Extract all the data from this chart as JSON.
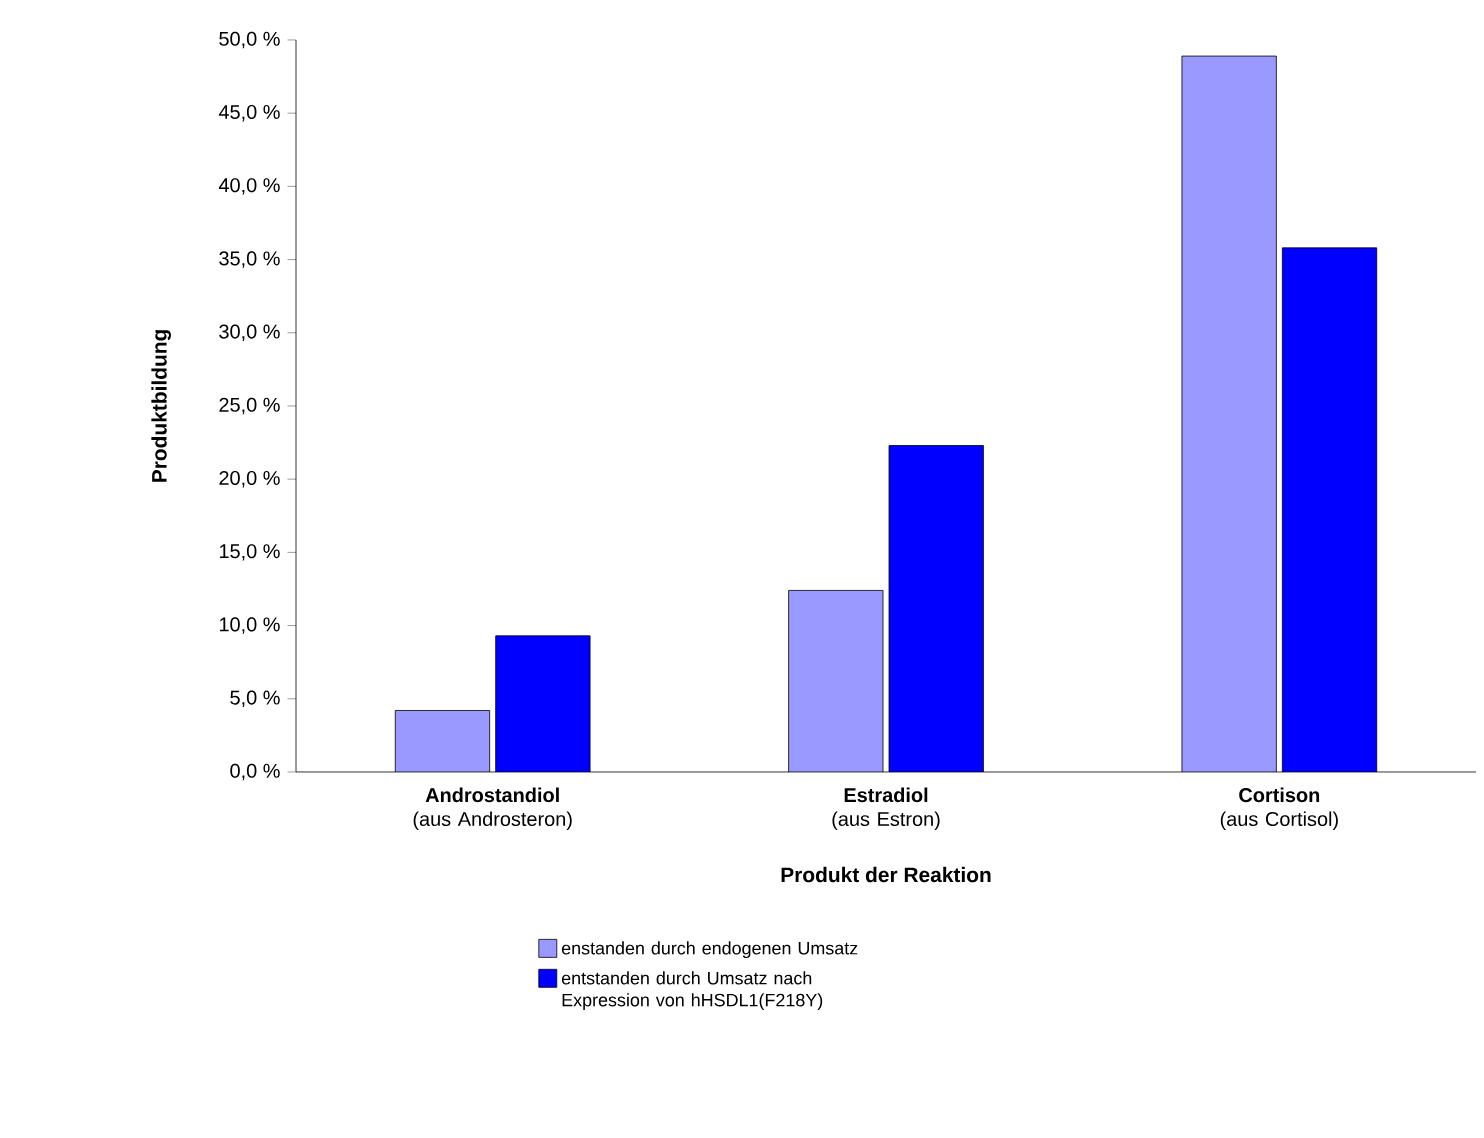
{
  "chart_data": {
    "type": "bar",
    "categories": [
      "**Androstandiol** (aus Androsteron)",
      "**Estradiol** (aus Estron)",
      "**Cortison** (aus Cortisol)"
    ],
    "series": [
      {
        "name": "enstanden durch endogenen Umsatz",
        "color": "#9999ff",
        "values": [
          4.2,
          12.4,
          48.9
        ]
      },
      {
        "name": "entstanden durch Umsatz nach Expression von hHSDL1(F218Y)",
        "color": "#0000ff",
        "values": [
          9.3,
          22.3,
          35.8
        ]
      }
    ],
    "xlabel": "Produkt der Reaktion",
    "ylabel": "Produktbildung",
    "ylim": [
      0,
      50
    ],
    "yticks": [
      {
        "value": 0,
        "label": "0,0 %"
      },
      {
        "value": 5,
        "label": "5,0 %"
      },
      {
        "value": 10,
        "label": "10,0 %"
      },
      {
        "value": 15,
        "label": "15,0 %"
      },
      {
        "value": 20,
        "label": "20,0 %"
      },
      {
        "value": 25,
        "label": "25,0 %"
      },
      {
        "value": 30,
        "label": "30,0 %"
      },
      {
        "value": 35,
        "label": "35,0 %"
      },
      {
        "value": 40,
        "label": "40,0 %"
      },
      {
        "value": 45,
        "label": "45,0 %"
      },
      {
        "value": 50,
        "label": "50,0 %"
      }
    ],
    "grid": false,
    "legend": "bottom"
  }
}
